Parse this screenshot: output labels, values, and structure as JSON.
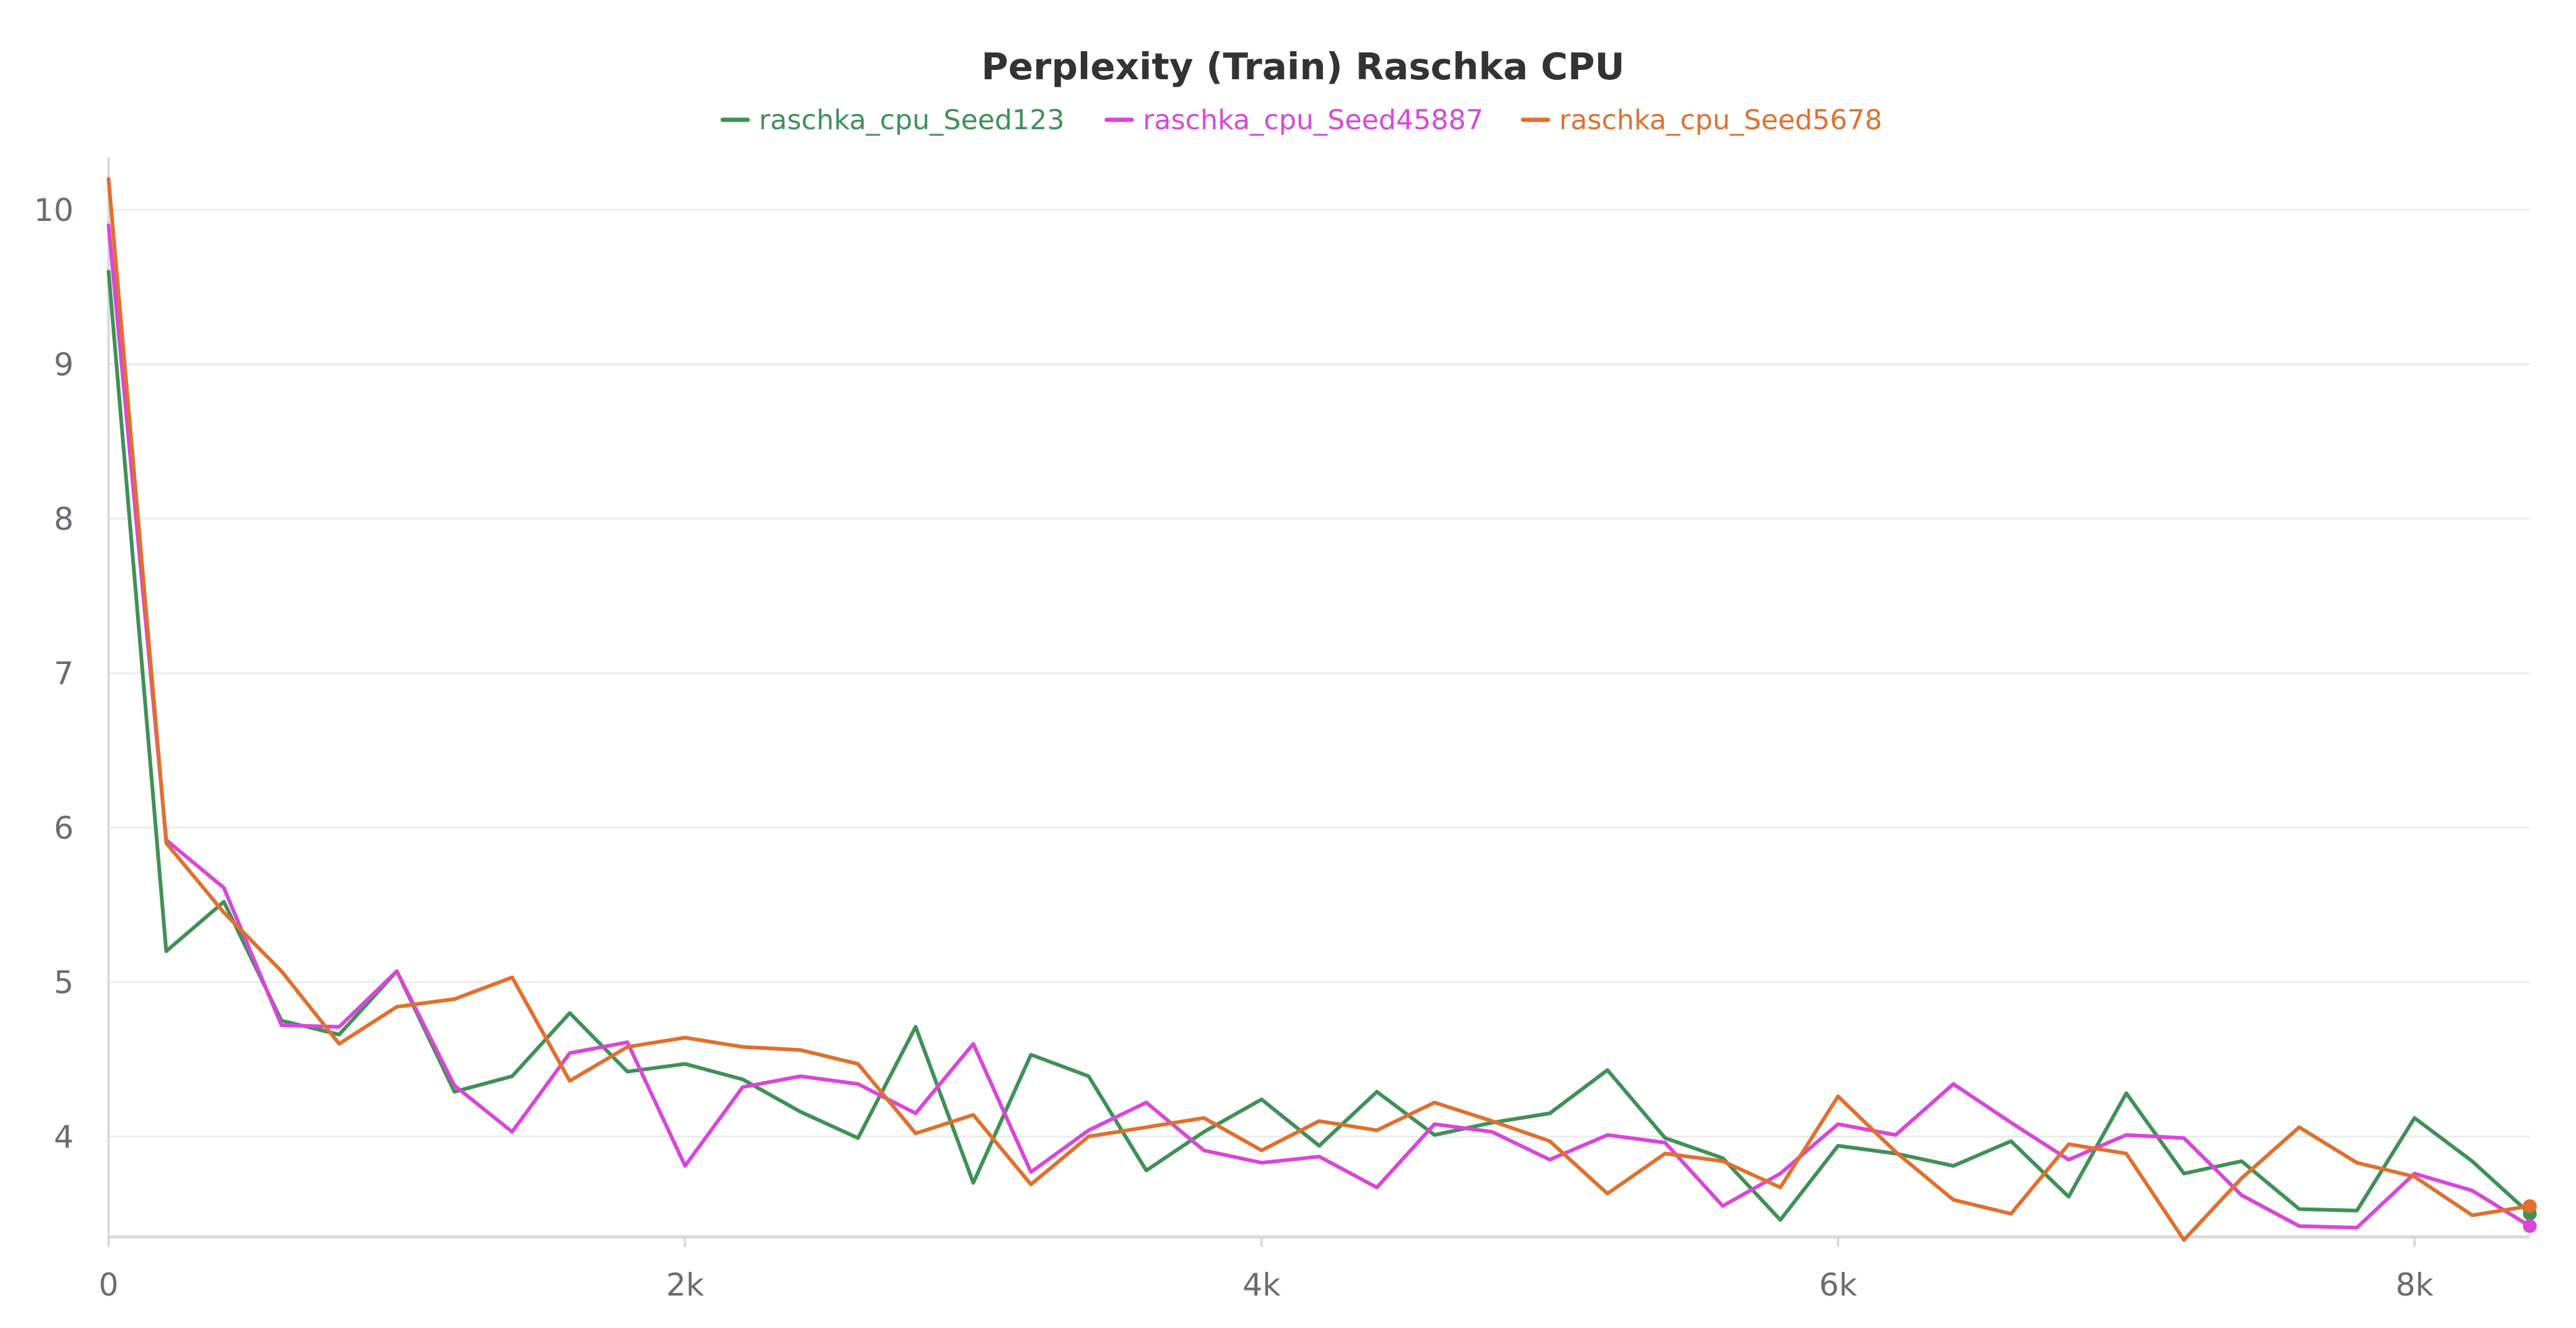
{
  "chart_data": {
    "type": "line",
    "title": "Perplexity (Train) Raschka CPU",
    "xlabel": "",
    "ylabel": "",
    "xlim": [
      0,
      8400
    ],
    "ylim": [
      3.35,
      10.3
    ],
    "x_ticks": [
      {
        "value": 0,
        "label": "0"
      },
      {
        "value": 2000,
        "label": "2k"
      },
      {
        "value": 4000,
        "label": "4k"
      },
      {
        "value": 6000,
        "label": "6k"
      },
      {
        "value": 8000,
        "label": "8k"
      }
    ],
    "y_ticks": [
      {
        "value": 4,
        "label": "4"
      },
      {
        "value": 5,
        "label": "5"
      },
      {
        "value": 6,
        "label": "6"
      },
      {
        "value": 7,
        "label": "7"
      },
      {
        "value": 8,
        "label": "8"
      },
      {
        "value": 9,
        "label": "9"
      },
      {
        "value": 10,
        "label": "10"
      }
    ],
    "grid": true,
    "legend_position": "top-center",
    "x": [
      0,
      200,
      400,
      600,
      800,
      1000,
      1200,
      1400,
      1600,
      1800,
      2000,
      2200,
      2400,
      2600,
      2800,
      3000,
      3200,
      3400,
      3600,
      3800,
      4000,
      4200,
      4400,
      4600,
      4800,
      5000,
      5200,
      5400,
      5600,
      5800,
      6000,
      6200,
      6400,
      6600,
      6800,
      7000,
      7200,
      7400,
      7600,
      7800,
      8000,
      8200,
      8400
    ],
    "series": [
      {
        "name": "raschka_cpu_Seed123",
        "color": "#3f9156",
        "values": [
          9.6,
          5.2,
          5.52,
          4.75,
          4.66,
          5.07,
          4.29,
          4.39,
          4.8,
          4.42,
          4.47,
          4.37,
          4.16,
          3.99,
          4.71,
          3.7,
          4.53,
          4.39,
          3.78,
          4.03,
          4.24,
          3.94,
          4.29,
          4.01,
          4.09,
          4.15,
          4.43,
          3.99,
          3.86,
          3.46,
          3.94,
          3.89,
          3.81,
          3.97,
          3.61,
          4.28,
          3.76,
          3.84,
          3.53,
          3.52,
          4.12,
          3.84,
          3.5
        ]
      },
      {
        "name": "raschka_cpu_Seed45887",
        "color": "#d946d9",
        "values": [
          9.9,
          5.92,
          5.61,
          4.72,
          4.71,
          5.07,
          4.33,
          4.03,
          4.54,
          4.61,
          3.81,
          4.32,
          4.39,
          4.34,
          4.15,
          4.6,
          3.77,
          4.04,
          4.22,
          3.91,
          3.83,
          3.87,
          3.67,
          4.08,
          4.03,
          3.85,
          4.01,
          3.96,
          3.55,
          3.76,
          4.08,
          4.01,
          4.34,
          4.09,
          3.85,
          4.01,
          3.99,
          3.62,
          3.42,
          3.41,
          3.76,
          3.65,
          3.42
        ]
      },
      {
        "name": "raschka_cpu_Seed5678",
        "color": "#e0702e",
        "values": [
          10.2,
          5.9,
          5.45,
          5.07,
          4.6,
          4.84,
          4.89,
          5.03,
          4.36,
          4.58,
          4.64,
          4.58,
          4.56,
          4.47,
          4.02,
          4.14,
          3.69,
          4.0,
          4.06,
          4.12,
          3.91,
          4.1,
          4.04,
          4.22,
          4.1,
          3.97,
          3.63,
          3.89,
          3.84,
          3.67,
          4.26,
          3.9,
          3.59,
          3.5,
          3.95,
          3.89,
          3.33,
          3.73,
          4.06,
          3.83,
          3.74,
          3.49,
          3.55
        ]
      }
    ]
  }
}
